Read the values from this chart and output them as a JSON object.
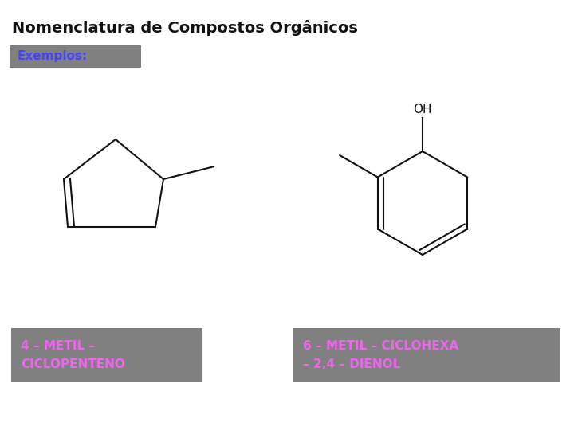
{
  "title": "Nomenclatura de Compostos Orgânicos",
  "title_color": "#111111",
  "title_fontsize": 15,
  "exemplos_label": "Exemplos:",
  "exemplos_text_color": "#4444ff",
  "exemplos_bg_color": "#808080",
  "label1": "4 – METIL –\nCICLOPENTENO",
  "label2": "6 – METIL – CICLOHEXA\n– 2,4 – DIENOL",
  "label_text_color": "#ee66ee",
  "label_bg_color": "#808080",
  "background_color": "#ffffff",
  "line_color": "#111111",
  "line_width": 1.5
}
